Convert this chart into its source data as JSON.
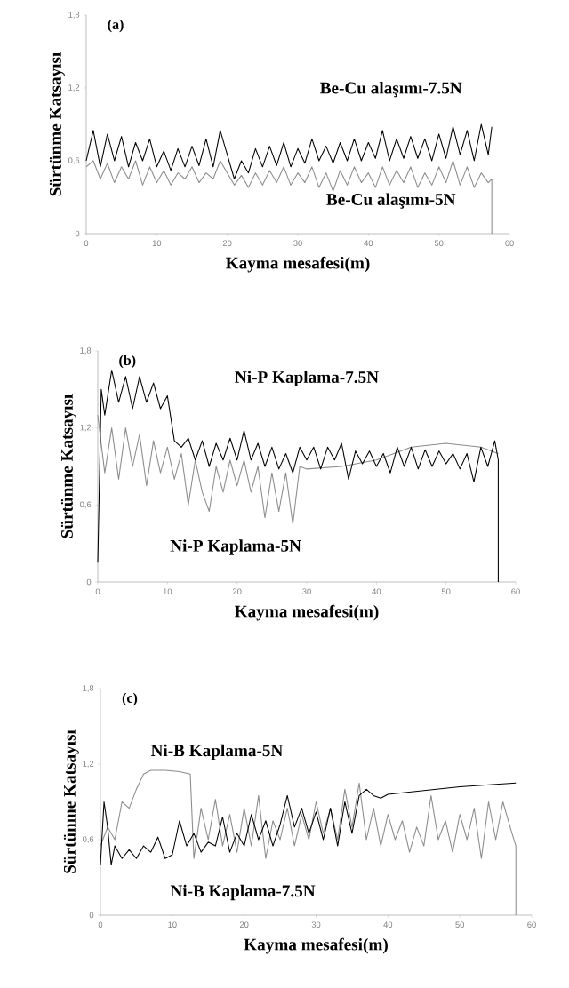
{
  "chart_data": [
    {
      "type": "line",
      "annotations": [
        "(a)"
      ],
      "xlabel": "Kayma mesafesi(m)",
      "ylabel": "Sürtünme Katsayısı",
      "xlim": [
        0,
        60
      ],
      "ylim": [
        0,
        1.8
      ],
      "xticks": [
        0,
        10,
        20,
        30,
        40,
        50,
        60
      ],
      "yticks": [
        0,
        {
          "value": 0.6,
          "label": "0,6"
        },
        {
          "value": 1.2,
          "label": "1,2"
        },
        {
          "value": 1.8,
          "label": "1,8"
        }
      ],
      "grid": false,
      "marker": "none",
      "series": [
        {
          "name": "Be-Cu alaşımı-5N",
          "color": "#8c8c8c",
          "x": [
            0,
            1,
            2,
            3,
            4,
            5,
            6,
            7,
            8,
            9,
            10,
            11,
            12,
            13,
            14,
            15,
            16,
            17,
            18,
            19,
            20,
            21,
            22,
            23,
            24,
            25,
            26,
            27,
            28,
            29,
            30,
            31,
            32,
            33,
            34,
            35,
            36,
            37,
            38,
            39,
            40,
            41,
            42,
            43,
            44,
            45,
            46,
            47,
            48,
            49,
            50,
            51,
            52,
            53,
            54,
            55,
            56,
            57,
            57.5,
            57.5
          ],
          "values": [
            0.55,
            0.6,
            0.45,
            0.58,
            0.42,
            0.55,
            0.45,
            0.6,
            0.4,
            0.55,
            0.42,
            0.52,
            0.4,
            0.5,
            0.45,
            0.55,
            0.42,
            0.5,
            0.45,
            0.6,
            0.5,
            0.4,
            0.48,
            0.38,
            0.5,
            0.4,
            0.52,
            0.42,
            0.55,
            0.4,
            0.5,
            0.42,
            0.55,
            0.38,
            0.5,
            0.35,
            0.52,
            0.4,
            0.55,
            0.42,
            0.5,
            0.38,
            0.55,
            0.4,
            0.52,
            0.42,
            0.55,
            0.38,
            0.5,
            0.4,
            0.55,
            0.42,
            0.6,
            0.4,
            0.55,
            0.38,
            0.5,
            0.42,
            0.45,
            0
          ]
        },
        {
          "name": "Be-Cu alaşımı-7.5N",
          "color": "#000000",
          "x": [
            0,
            1,
            2,
            3,
            4,
            5,
            6,
            7,
            8,
            9,
            10,
            11,
            12,
            13,
            14,
            15,
            16,
            17,
            18,
            19,
            20,
            21,
            22,
            23,
            24,
            25,
            26,
            27,
            28,
            29,
            30,
            31,
            32,
            33,
            34,
            35,
            36,
            37,
            38,
            39,
            40,
            41,
            42,
            43,
            44,
            45,
            46,
            47,
            48,
            49,
            50,
            51,
            52,
            53,
            54,
            55,
            56,
            57,
            57.5
          ],
          "values": [
            0.6,
            0.85,
            0.55,
            0.82,
            0.6,
            0.8,
            0.55,
            0.75,
            0.6,
            0.78,
            0.55,
            0.68,
            0.52,
            0.7,
            0.55,
            0.72,
            0.56,
            0.78,
            0.55,
            0.85,
            0.65,
            0.45,
            0.6,
            0.5,
            0.7,
            0.55,
            0.72,
            0.56,
            0.75,
            0.55,
            0.7,
            0.58,
            0.78,
            0.6,
            0.72,
            0.58,
            0.75,
            0.6,
            0.78,
            0.6,
            0.75,
            0.62,
            0.85,
            0.6,
            0.78,
            0.62,
            0.8,
            0.62,
            0.78,
            0.6,
            0.82,
            0.62,
            0.88,
            0.65,
            0.85,
            0.6,
            0.9,
            0.65,
            0.88
          ]
        }
      ]
    },
    {
      "type": "line",
      "annotations": [
        "(b)"
      ],
      "xlabel": "Kayma mesafesi(m)",
      "ylabel": "Sürtünme Katsayısı",
      "xlim": [
        0,
        60
      ],
      "ylim": [
        0,
        1.8
      ],
      "xticks": [
        0,
        10,
        20,
        30,
        40,
        50,
        60
      ],
      "yticks": [
        0,
        {
          "value": 0.6,
          "label": "0,6"
        },
        {
          "value": 1.2,
          "label": "1,2"
        },
        {
          "value": 1.8,
          "label": "1,8"
        }
      ],
      "grid": false,
      "marker": "none",
      "series": [
        {
          "name": "Ni-P Kaplama-5N",
          "color": "#8c8c8c",
          "x": [
            0,
            1,
            2,
            3,
            4,
            5,
            6,
            7,
            8,
            9,
            10,
            11,
            12,
            13,
            14,
            15,
            16,
            17,
            18,
            19,
            20,
            21,
            22,
            23,
            24,
            25,
            26,
            27,
            28,
            29,
            30,
            35,
            40,
            45,
            50,
            55,
            57.5
          ],
          "values": [
            1.3,
            0.85,
            1.2,
            0.8,
            1.2,
            0.9,
            1.15,
            0.75,
            1.1,
            0.85,
            1.05,
            0.8,
            1.0,
            0.6,
            0.95,
            0.7,
            0.55,
            0.9,
            0.7,
            0.95,
            0.75,
            0.95,
            0.7,
            0.9,
            0.5,
            0.85,
            0.55,
            0.85,
            0.45,
            0.9,
            0.88,
            0.9,
            0.95,
            1.05,
            1.08,
            1.05,
            1.0
          ]
        },
        {
          "name": "Ni-P Kaplama-7.5N",
          "color": "#000000",
          "x": [
            0,
            0.5,
            1,
            2,
            3,
            4,
            5,
            6,
            7,
            8,
            9,
            10,
            11,
            12,
            13,
            14,
            15,
            16,
            17,
            18,
            19,
            20,
            21,
            22,
            23,
            24,
            25,
            26,
            27,
            28,
            29,
            30,
            31,
            32,
            33,
            34,
            35,
            36,
            37,
            38,
            39,
            40,
            41,
            42,
            43,
            44,
            45,
            46,
            47,
            48,
            49,
            50,
            51,
            52,
            53,
            54,
            55,
            56,
            57,
            57.5,
            57.5
          ],
          "values": [
            0.15,
            1.5,
            1.3,
            1.65,
            1.4,
            1.6,
            1.35,
            1.6,
            1.4,
            1.55,
            1.35,
            1.45,
            1.1,
            1.05,
            1.12,
            0.95,
            1.1,
            0.9,
            1.08,
            0.95,
            1.12,
            0.95,
            1.18,
            0.95,
            1.08,
            0.9,
            1.05,
            0.88,
            1.0,
            0.85,
            1.05,
            0.95,
            1.05,
            0.88,
            1.05,
            0.95,
            1.08,
            0.8,
            1.02,
            0.92,
            1.02,
            0.9,
            1.0,
            0.85,
            1.05,
            0.9,
            1.05,
            0.88,
            1.03,
            0.9,
            1.02,
            0.92,
            1.0,
            0.88,
            1.0,
            0.78,
            1.05,
            0.9,
            1.1,
            0.95,
            0
          ]
        }
      ]
    },
    {
      "type": "line",
      "annotations": [
        "(c)"
      ],
      "xlabel": "Kayma mesafesi(m)",
      "ylabel": "Sürtünme Katsayısı",
      "xlim": [
        0,
        60
      ],
      "ylim": [
        0,
        1.8
      ],
      "xticks": [
        0,
        10,
        20,
        30,
        40,
        50,
        60
      ],
      "yticks": [
        0,
        {
          "value": 0.6,
          "label": "0,6"
        },
        {
          "value": 1.2,
          "label": "1,2"
        },
        {
          "value": 1.8,
          "label": "1,8"
        }
      ],
      "grid": false,
      "marker": "none",
      "series": [
        {
          "name": "Ni-B Kaplama-5N",
          "color": "#8c8c8c",
          "x": [
            0,
            1,
            2,
            3,
            4,
            5,
            6,
            7,
            9,
            11,
            12.5,
            13,
            14,
            15,
            16,
            17,
            18,
            19,
            20,
            21,
            22,
            23,
            24,
            25,
            26,
            27,
            28,
            29,
            30,
            31,
            32,
            33,
            34,
            35,
            36,
            37,
            38,
            39,
            40,
            41,
            42,
            43,
            44,
            45,
            46,
            47,
            48,
            49,
            50,
            51,
            52,
            53,
            54,
            55,
            56,
            57,
            57.8,
            57.8
          ],
          "values": [
            0.55,
            0.7,
            0.6,
            0.9,
            0.85,
            1.0,
            1.12,
            1.15,
            1.15,
            1.14,
            1.12,
            0.45,
            0.85,
            0.6,
            0.92,
            0.55,
            0.8,
            0.5,
            0.85,
            0.55,
            0.95,
            0.45,
            0.75,
            0.6,
            0.85,
            0.55,
            0.8,
            0.6,
            0.9,
            0.65,
            0.85,
            0.6,
            1.0,
            0.7,
            1.05,
            0.6,
            0.85,
            0.55,
            0.8,
            0.6,
            0.75,
            0.5,
            0.7,
            0.55,
            0.95,
            0.6,
            0.75,
            0.5,
            0.8,
            0.6,
            0.85,
            0.45,
            0.9,
            0.6,
            0.9,
            0.7,
            0.55,
            0
          ]
        },
        {
          "name": "Ni-B Kaplama-7.5N",
          "color": "#000000",
          "x": [
            0,
            0.5,
            1,
            1.5,
            2,
            3,
            4,
            5,
            6,
            7,
            8,
            9,
            10,
            11,
            12,
            13,
            14,
            15,
            16,
            17,
            18,
            19,
            20,
            21,
            22,
            23,
            24,
            25,
            26,
            27,
            28,
            29,
            30,
            31,
            32,
            33,
            34,
            35,
            36,
            37,
            38,
            39,
            40,
            45,
            50,
            55,
            57.8
          ],
          "values": [
            0.4,
            0.9,
            0.7,
            0.4,
            0.55,
            0.45,
            0.52,
            0.45,
            0.55,
            0.5,
            0.62,
            0.45,
            0.48,
            0.75,
            0.55,
            0.65,
            0.5,
            0.58,
            0.55,
            0.78,
            0.5,
            0.65,
            0.55,
            0.8,
            0.6,
            0.75,
            0.55,
            0.72,
            0.95,
            0.7,
            0.85,
            0.65,
            0.82,
            0.6,
            0.85,
            0.55,
            0.9,
            0.65,
            0.95,
            1.0,
            0.95,
            0.93,
            0.96,
            0.99,
            1.02,
            1.04,
            1.05
          ]
        }
      ]
    }
  ]
}
